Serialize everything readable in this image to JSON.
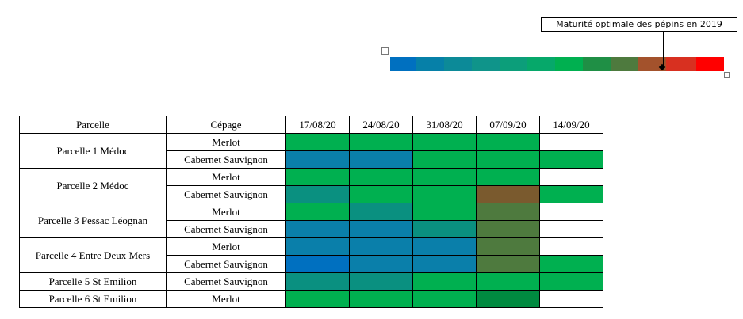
{
  "legend": {
    "label": "Maturité optimale des pépins en 2019",
    "scale_colors": [
      "#0070C0",
      "#0680A8",
      "#0C8A98",
      "#0F948A",
      "#0C9E7A",
      "#06A86A",
      "#00B050",
      "#1F8F45",
      "#4E7A3E",
      "#A3522C",
      "#D83020",
      "#FF0000"
    ]
  },
  "colors": {
    "blue": "#0070C0",
    "blue_teal": "#0A7FAA",
    "teal": "#0A9080",
    "green": "#00B050",
    "dark_green": "#008A40",
    "olive": "#4E7A3E",
    "brown": "#7A5A2E",
    "white": "#FFFFFF"
  },
  "table": {
    "headers": [
      "Parcelle",
      "Cépage",
      "17/08/20",
      "24/08/20",
      "31/08/20",
      "07/09/20",
      "14/09/20"
    ],
    "groups": [
      {
        "parcelle": "Parcelle 1 Médoc",
        "rows": [
          {
            "cepage": "Merlot",
            "cells": [
              "green",
              "green",
              "green",
              "green",
              "white"
            ]
          },
          {
            "cepage": "Cabernet Sauvignon",
            "cells": [
              "blue_teal",
              "blue_teal",
              "green",
              "green",
              "green"
            ]
          }
        ]
      },
      {
        "parcelle": "Parcelle 2 Médoc",
        "rows": [
          {
            "cepage": "Merlot",
            "cells": [
              "green",
              "green",
              "green",
              "green",
              "white"
            ]
          },
          {
            "cepage": "Cabernet Sauvignon",
            "cells": [
              "teal",
              "green",
              "green",
              "brown",
              "green"
            ]
          }
        ]
      },
      {
        "parcelle": "Parcelle 3 Pessac Léognan",
        "rows": [
          {
            "cepage": "Merlot",
            "cells": [
              "green",
              "teal",
              "green",
              "olive",
              "white"
            ]
          },
          {
            "cepage": "Cabernet Sauvignon",
            "cells": [
              "blue_teal",
              "blue_teal",
              "teal",
              "olive",
              "white"
            ]
          }
        ]
      },
      {
        "parcelle": "Parcelle 4 Entre Deux Mers",
        "rows": [
          {
            "cepage": "Merlot",
            "cells": [
              "blue_teal",
              "blue_teal",
              "blue_teal",
              "olive",
              "white"
            ]
          },
          {
            "cepage": "Cabernet Sauvignon",
            "cells": [
              "blue",
              "blue_teal",
              "blue_teal",
              "olive",
              "green"
            ]
          }
        ]
      },
      {
        "parcelle": "Parcelle 5 St Emilion",
        "rows": [
          {
            "cepage": "Cabernet Sauvignon",
            "cells": [
              "teal",
              "teal",
              "green",
              "green",
              "green"
            ]
          }
        ]
      },
      {
        "parcelle": "Parcelle 6 St Emilion",
        "rows": [
          {
            "cepage": "Merlot",
            "cells": [
              "green",
              "green",
              "green",
              "dark_green",
              "white"
            ]
          }
        ]
      }
    ]
  }
}
